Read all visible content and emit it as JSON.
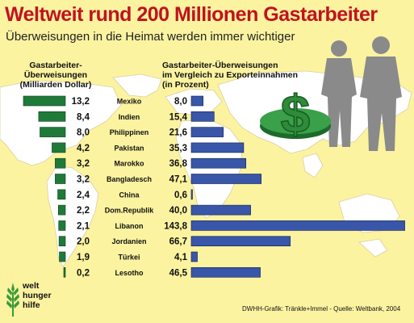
{
  "header": {
    "title": "Weltweit rund 200 Millionen Gastarbeiter",
    "subtitle": "Überweisungen in die Heimat werden immer wichtiger"
  },
  "left_heading": [
    "Gastarbeiter-",
    "Überweisungen",
    "(Milliarden Dollar)"
  ],
  "right_heading": [
    "Gastarbeiter-Überweisungen",
    "im Vergleich zu Exporteinnahmen",
    "(in Prozent)"
  ],
  "logo": {
    "lines": [
      "welt",
      "hunger",
      "hilfe"
    ]
  },
  "credit": "DWHH-Grafik: Tränkle+Immel - Quelle: Weltbank, 2004",
  "colors": {
    "title_red": "#c1121f",
    "background_yellow": "#fbf3a0",
    "map_white": "#ffffff",
    "left_bar_green": "#1f7a3a",
    "right_bar_blue": "#3a56a8",
    "dollar_green": "#2e8b3a",
    "silhouette_gray": "#8a8a8a"
  },
  "icons": [
    "world-map",
    "dollar-sign-icon",
    "people-silhouette-icon",
    "wheat-logo-icon"
  ],
  "chart_data": {
    "type": "bar",
    "categories": [
      "Mexiko",
      "Indien",
      "Philippinen",
      "Pakistan",
      "Marokko",
      "Bangladesch",
      "China",
      "Dom.Republik",
      "Libanon",
      "Jordanien",
      "Türkei",
      "Lesotho"
    ],
    "series": [
      {
        "name": "Gastarbeiter-Überweisungen (Milliarden Dollar)",
        "values": [
          13.2,
          8.4,
          8.0,
          4.2,
          3.2,
          3.2,
          2.4,
          2.2,
          2.1,
          2.0,
          1.9,
          0.2
        ],
        "labels": [
          "13,2",
          "8,4",
          "8,0",
          "4,2",
          "3,2",
          "3,2",
          "2,4",
          "2,2",
          "2,1",
          "2,0",
          "1,9",
          "0,2"
        ]
      },
      {
        "name": "Gastarbeiter-Überweisungen im Vergleich zu Exporteinnahmen (in Prozent)",
        "values": [
          8.0,
          15.4,
          21.6,
          35.3,
          36.8,
          47.1,
          0.6,
          40.0,
          143.8,
          66.7,
          4.1,
          46.5
        ],
        "labels": [
          "8,0",
          "15,4",
          "21,6",
          "35,3",
          "36,8",
          "47,1",
          "0,6",
          "40,0",
          "143,8",
          "66,7",
          "4,1",
          "46,5"
        ]
      }
    ],
    "legend": "none",
    "grid": false
  }
}
